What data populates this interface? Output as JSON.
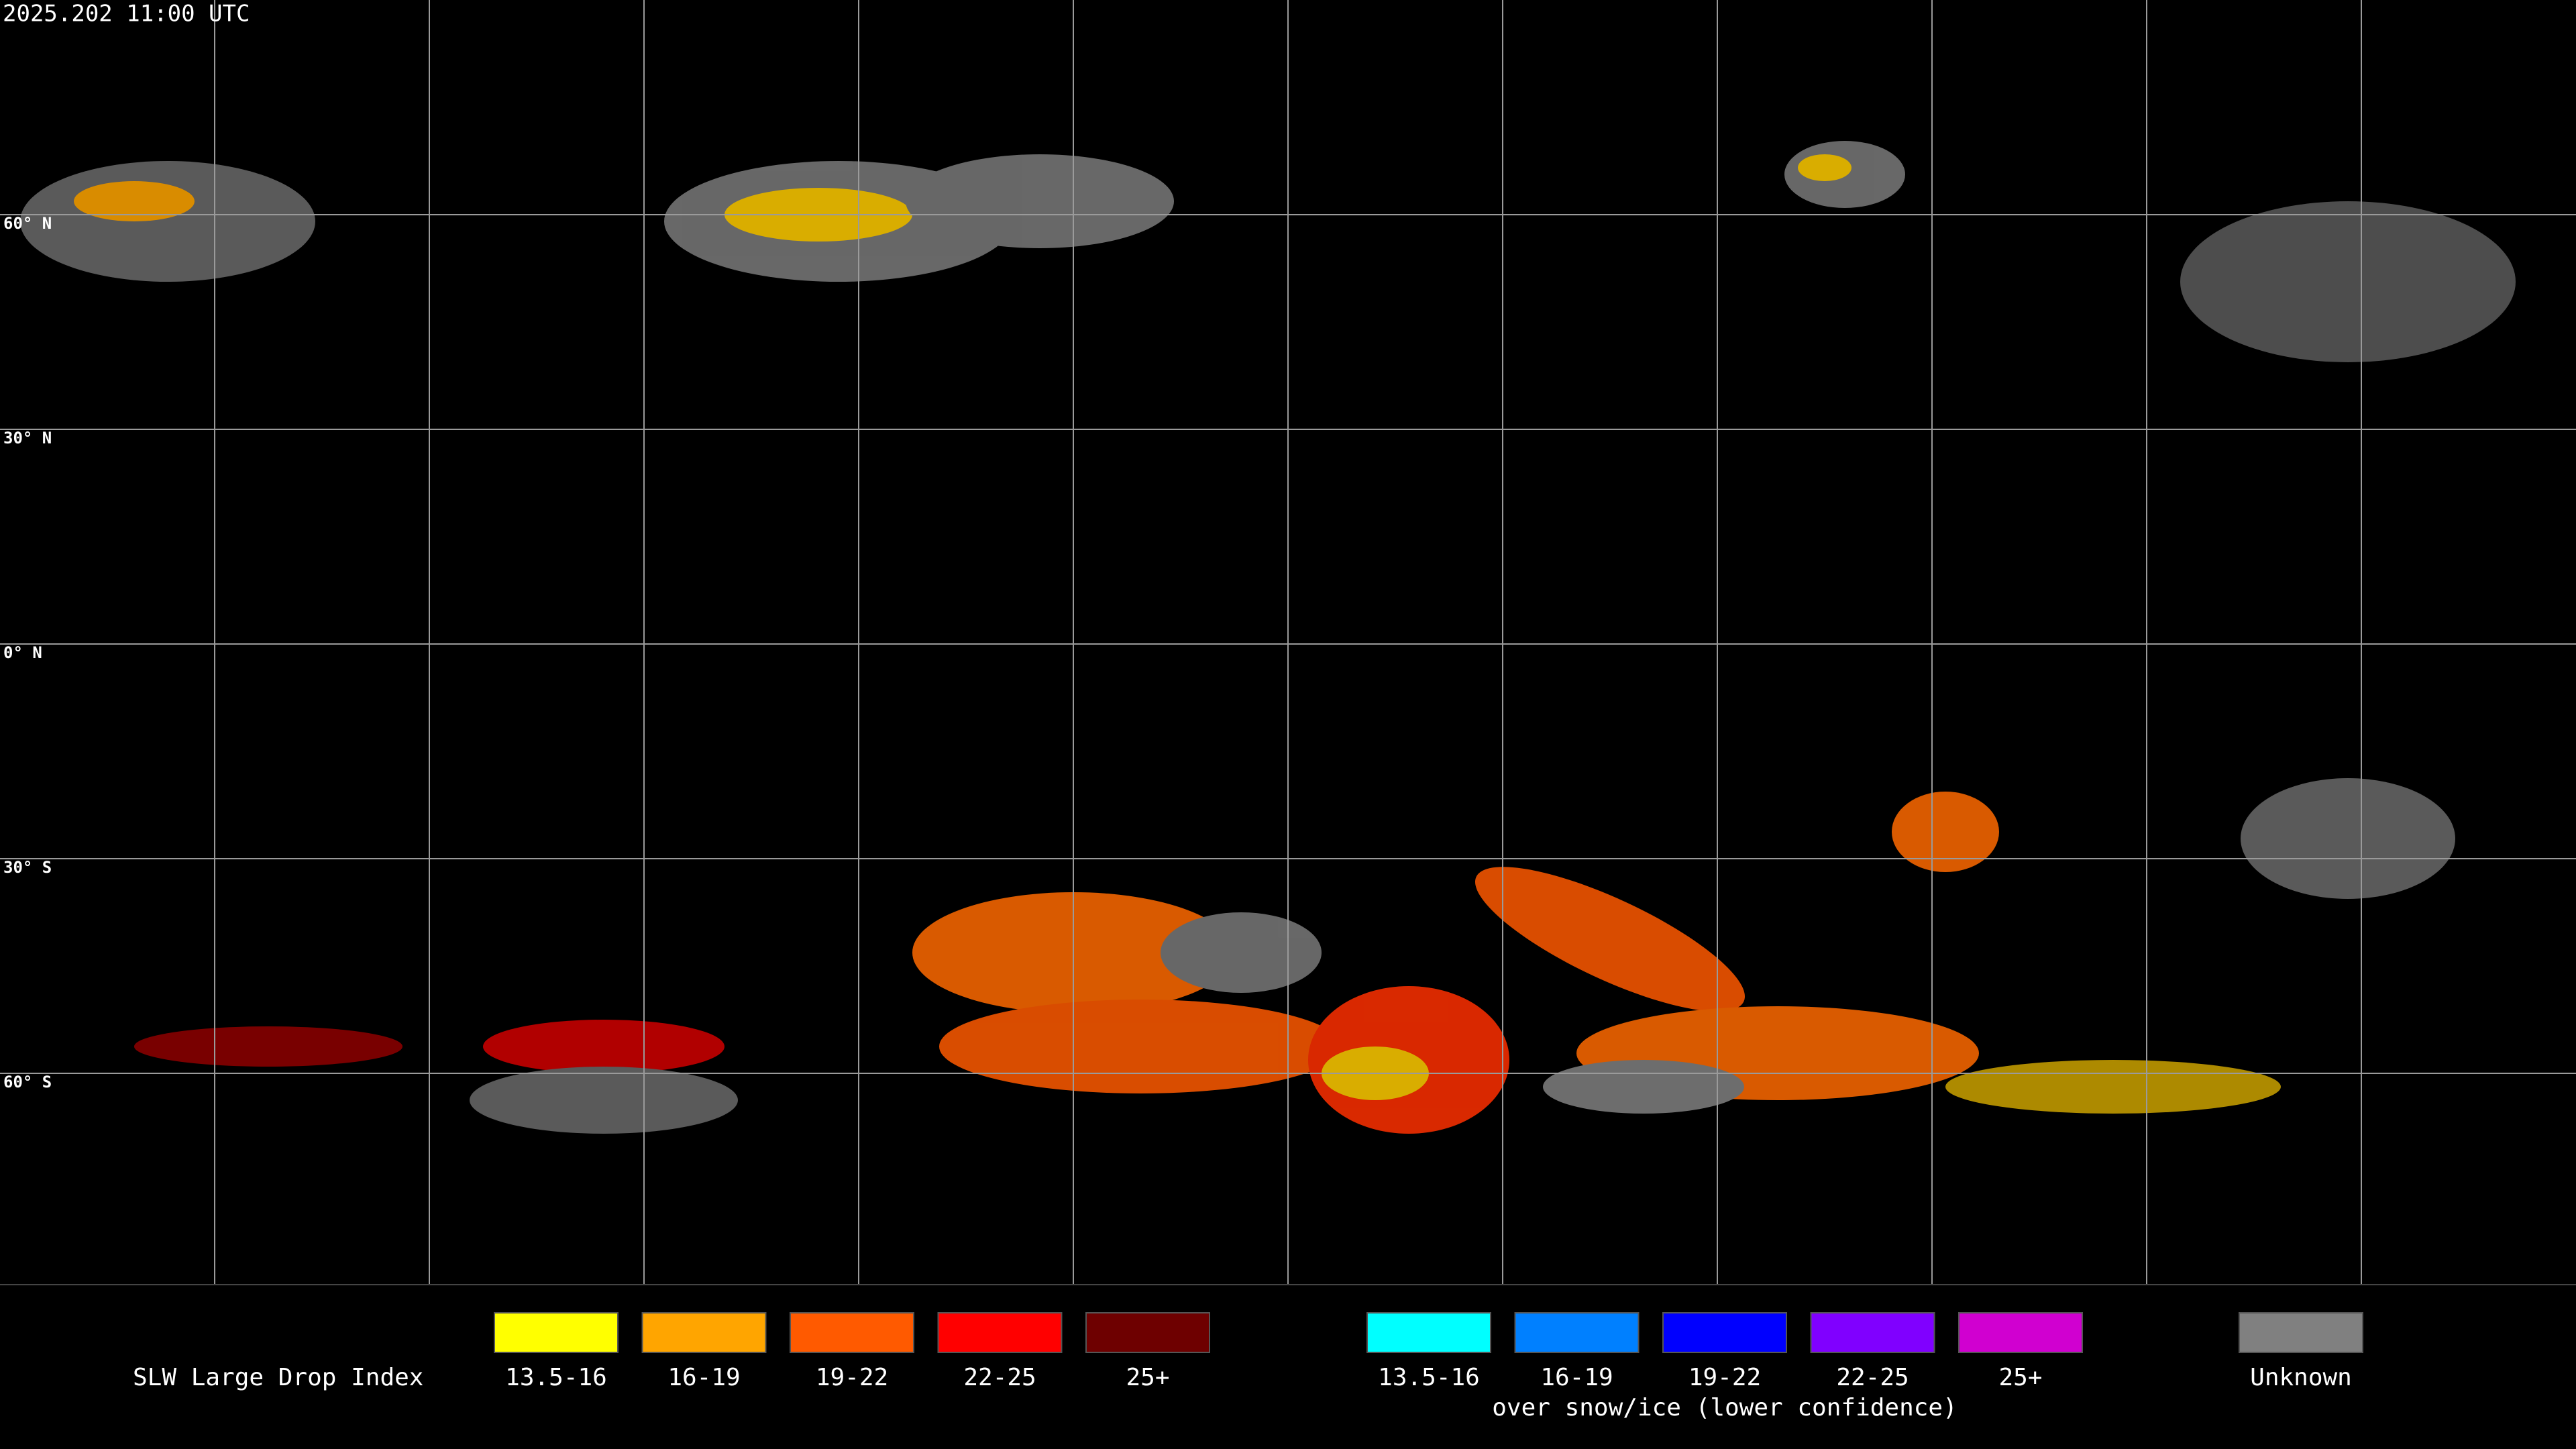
{
  "header": {
    "timestamp": "2025.202 11:00 UTC"
  },
  "grid": {
    "lat_labels": [
      "60° N",
      "30° N",
      "0° N",
      "30° S",
      "60° S"
    ]
  },
  "legend": {
    "title": "SLW Large Drop Index",
    "liquid": [
      {
        "label": "13.5-16",
        "color": "#ffff00"
      },
      {
        "label": "16-19",
        "color": "#ffa500"
      },
      {
        "label": "19-22",
        "color": "#ff5a00"
      },
      {
        "label": "22-25",
        "color": "#ff0000"
      },
      {
        "label": "25+",
        "color": "#6e0000"
      }
    ],
    "snow": [
      {
        "label": "13.5-16",
        "color": "#00ffff"
      },
      {
        "label": "16-19",
        "color": "#0080ff"
      },
      {
        "label": "19-22",
        "color": "#0000ff"
      },
      {
        "label": "22-25",
        "color": "#8000ff"
      },
      {
        "label": "25+",
        "color": "#d000d0"
      }
    ],
    "snow_note": "over snow/ice (lower confidence)",
    "unknown": {
      "label": "Unknown",
      "color": "#808080"
    }
  }
}
